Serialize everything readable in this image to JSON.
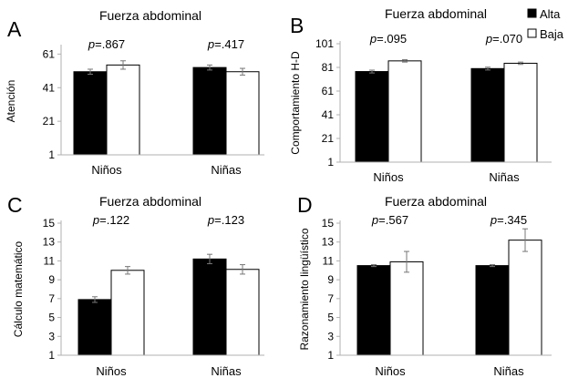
{
  "legend": [
    {
      "label": "Alta",
      "color": "#000000"
    },
    {
      "label": "Baja",
      "color": "#ffffff"
    }
  ],
  "chart_data": [
    {
      "type": "bar",
      "letter": "A",
      "title": "Fuerza abdominal",
      "ylabel": "Atención",
      "xlabel": "",
      "categories": [
        "Niños",
        "Niñas"
      ],
      "pvalues": [
        "=.867",
        "=.417"
      ],
      "yticks": [
        1,
        21,
        41,
        61
      ],
      "ylim": [
        1,
        65
      ],
      "series": [
        {
          "name": "Alta",
          "values": [
            50.5,
            53.0
          ],
          "errors": [
            1.5,
            1.5
          ]
        },
        {
          "name": "Baja",
          "values": [
            54.5,
            50.5
          ],
          "errors": [
            2.5,
            2.0
          ]
        }
      ]
    },
    {
      "type": "bar",
      "letter": "B",
      "title": "Fuerza abdominal",
      "ylabel": "Comportamiento H-D",
      "xlabel": "",
      "categories": [
        "Niños",
        "Niñas"
      ],
      "pvalues": [
        "=.095",
        "=.070"
      ],
      "yticks": [
        1,
        21,
        41,
        61,
        81,
        101
      ],
      "ylim": [
        1,
        101
      ],
      "series": [
        {
          "name": "Alta",
          "values": [
            77.5,
            80.0
          ],
          "errors": [
            1.2,
            1.2
          ]
        },
        {
          "name": "Baja",
          "values": [
            86.5,
            84.5
          ],
          "errors": [
            1.0,
            1.0
          ]
        }
      ]
    },
    {
      "type": "bar",
      "letter": "C",
      "title": "Fuerza abdominal",
      "ylabel": "Cálculo matemático",
      "xlabel": "",
      "categories": [
        "Niños",
        "Niñas"
      ],
      "pvalues": [
        "=.122",
        "=.123"
      ],
      "yticks": [
        1,
        3,
        5,
        7,
        9,
        11,
        13,
        15
      ],
      "ylim": [
        1,
        15
      ],
      "series": [
        {
          "name": "Alta",
          "values": [
            6.9,
            11.2
          ],
          "errors": [
            0.3,
            0.5
          ]
        },
        {
          "name": "Baja",
          "values": [
            10.0,
            10.1
          ],
          "errors": [
            0.4,
            0.5
          ]
        }
      ]
    },
    {
      "type": "bar",
      "letter": "D",
      "title": "Fuerza abdominal",
      "ylabel": "Razonamiento lingüístico",
      "xlabel": "",
      "categories": [
        "Niños",
        "Niñas"
      ],
      "pvalues": [
        "=.567",
        "=.345"
      ],
      "yticks": [
        1,
        3,
        5,
        7,
        9,
        11,
        13,
        15
      ],
      "ylim": [
        1,
        15
      ],
      "series": [
        {
          "name": "Alta",
          "values": [
            10.5,
            10.5
          ],
          "errors": [
            0.1,
            0.1
          ]
        },
        {
          "name": "Baja",
          "values": [
            10.9,
            13.2
          ],
          "errors": [
            1.1,
            1.2
          ]
        }
      ]
    }
  ]
}
